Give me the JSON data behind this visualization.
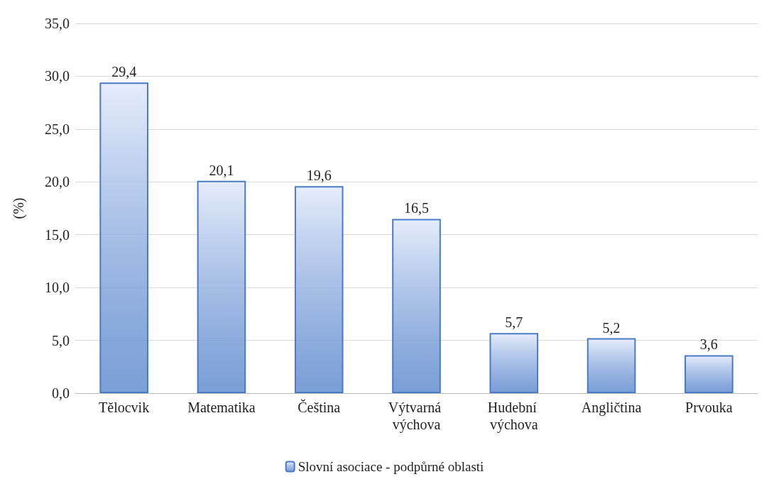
{
  "chart_data": {
    "type": "bar",
    "ylabel": "(%)",
    "categories": [
      "Tělocvik",
      "Matematika",
      "Čeština",
      "Výtvarná výchova",
      "Hudební výchova",
      "Angličtina",
      "Prvouka"
    ],
    "series": [
      {
        "name": "Slovní asociace - podpůrné oblasti",
        "color": "#4a7bc8",
        "values": [
          29.4,
          20.1,
          19.6,
          16.5,
          5.7,
          5.2,
          3.6
        ],
        "value_labels": [
          "29,4",
          "20,1",
          "19,6",
          "16,5",
          "5,7",
          "5,2",
          "3,6"
        ]
      }
    ],
    "ylim": [
      0,
      35
    ],
    "yticks": [
      {
        "value": 0,
        "label": "0,0"
      },
      {
        "value": 5,
        "label": "5,0"
      },
      {
        "value": 10,
        "label": "10,0"
      },
      {
        "value": 15,
        "label": "15,0"
      },
      {
        "value": 20,
        "label": "20,0"
      },
      {
        "value": 25,
        "label": "25,0"
      },
      {
        "value": 30,
        "label": "30,0"
      },
      {
        "value": 35,
        "label": "35,0"
      }
    ],
    "grid": "y",
    "legend": "bottom"
  }
}
